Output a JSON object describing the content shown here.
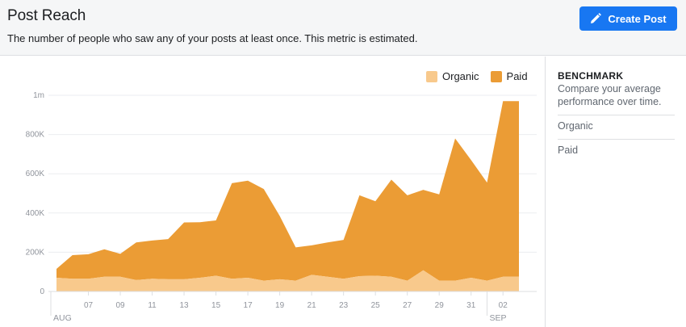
{
  "header": {
    "title": "Post Reach",
    "subtitle": "The number of people who saw any of your posts at least once. This metric is estimated.",
    "create_button": {
      "label": "Create Post",
      "icon": "pencil-icon"
    }
  },
  "benchmark": {
    "title": "BENCHMARK",
    "description": "Compare your average performance over time.",
    "options": [
      "Organic",
      "Paid"
    ]
  },
  "colors": {
    "organic": "#f8c98c",
    "paid": "#eb9c35",
    "accent": "#1877f2"
  },
  "chart_data": {
    "type": "area",
    "stacked": true,
    "legend_position": "top-right",
    "grid": true,
    "x_tick_labels": [
      "07",
      "09",
      "11",
      "13",
      "15",
      "17",
      "19",
      "21",
      "23",
      "25",
      "27",
      "29",
      "31",
      "02"
    ],
    "month_labels": [
      "AUG",
      "SEP"
    ],
    "y_tick_labels": [
      "0",
      "200K",
      "400K",
      "600K",
      "800K",
      "1m"
    ],
    "ylim": [
      0,
      1000000
    ],
    "x": [
      "Aug 5",
      "Aug 6",
      "Aug 7",
      "Aug 8",
      "Aug 9",
      "Aug 10",
      "Aug 11",
      "Aug 12",
      "Aug 13",
      "Aug 14",
      "Aug 15",
      "Aug 16",
      "Aug 17",
      "Aug 18",
      "Aug 19",
      "Aug 20",
      "Aug 21",
      "Aug 22",
      "Aug 23",
      "Aug 24",
      "Aug 25",
      "Aug 26",
      "Aug 27",
      "Aug 28",
      "Aug 29",
      "Aug 30",
      "Aug 31",
      "Sep 1",
      "Sep 2",
      "Sep 3"
    ],
    "series": [
      {
        "name": "Organic",
        "values": [
          70000,
          65000,
          65000,
          75000,
          75000,
          58000,
          65000,
          62000,
          62000,
          70000,
          80000,
          65000,
          70000,
          55000,
          62000,
          55000,
          85000,
          75000,
          65000,
          78000,
          80000,
          75000,
          55000,
          108000,
          55000,
          55000,
          70000,
          55000,
          75000,
          75000
        ]
      },
      {
        "name": "Paid",
        "values": [
          45000,
          120000,
          125000,
          140000,
          117000,
          192000,
          195000,
          205000,
          290000,
          283000,
          282000,
          487000,
          495000,
          467000,
          323000,
          170000,
          150000,
          175000,
          198000,
          412000,
          380000,
          495000,
          435000,
          410000,
          440000,
          725000,
          600000,
          500000,
          895000,
          895000
        ]
      }
    ]
  }
}
